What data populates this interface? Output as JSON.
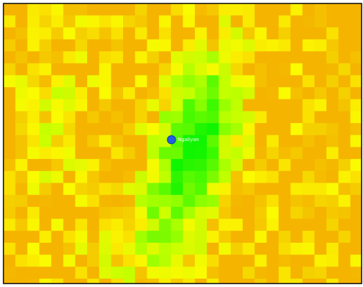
{
  "marker": {
    "label": "Ngaliyan"
  }
}
